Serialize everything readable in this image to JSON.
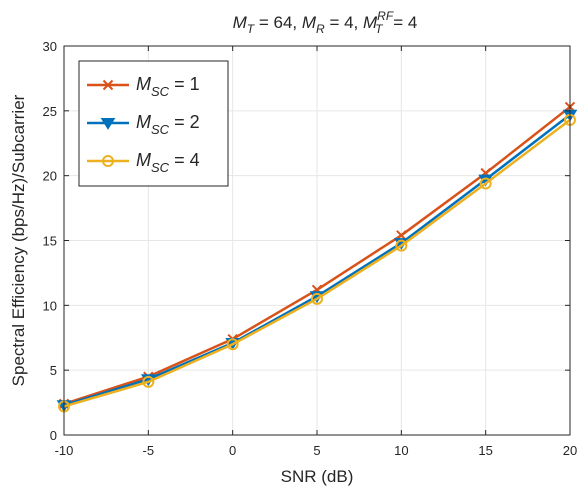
{
  "chart_data": {
    "type": "line",
    "title": {
      "parts": [
        {
          "main": "M",
          "sub": "T",
          "rest": " = 64,  "
        },
        {
          "main": "M",
          "sub": "R",
          "rest": " = 4,  "
        },
        {
          "main": "M",
          "sub": "T",
          "sup": "RF",
          "rest": " = 4"
        }
      ]
    },
    "xlabel": "SNR (dB)",
    "ylabel": "Spectral Efficiency (bps/Hz)/Subcarrier",
    "xlim": [
      -10,
      20
    ],
    "ylim": [
      0,
      30
    ],
    "xticks": [
      -10,
      -5,
      0,
      5,
      10,
      15,
      20
    ],
    "yticks": [
      0,
      5,
      10,
      15,
      20,
      25,
      30
    ],
    "grid": true,
    "legend_position": "top-left",
    "x": [
      -10,
      -5,
      0,
      5,
      10,
      15,
      20
    ],
    "series": [
      {
        "legend_main": "M",
        "legend_sub": "SC",
        "legend_rest": " = 1",
        "marker": "x",
        "color": "#D95319",
        "values": [
          2.4,
          4.5,
          7.4,
          11.2,
          15.4,
          20.2,
          25.3
        ]
      },
      {
        "legend_main": "M",
        "legend_sub": "SC",
        "legend_rest": " = 2",
        "marker": "triangle-down",
        "color": "#0072BD",
        "values": [
          2.3,
          4.3,
          7.1,
          10.7,
          14.8,
          19.7,
          24.7
        ]
      },
      {
        "legend_main": "M",
        "legend_sub": "SC",
        "legend_rest": " = 4",
        "marker": "circle",
        "color": "#EDB120",
        "values": [
          2.2,
          4.1,
          7.0,
          10.5,
          14.6,
          19.4,
          24.3
        ]
      }
    ]
  }
}
